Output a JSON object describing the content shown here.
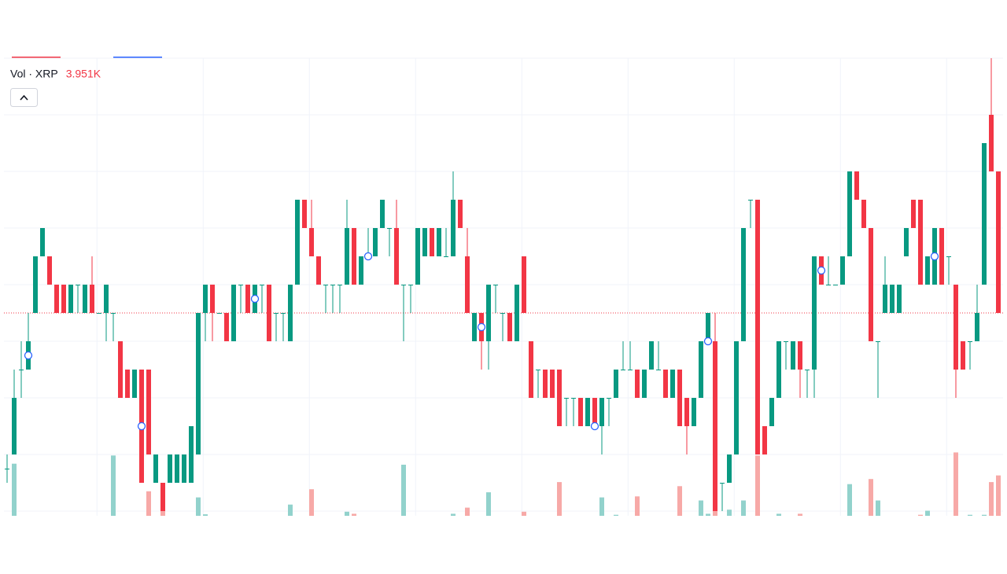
{
  "chart_data": {
    "type": "candlestick",
    "xlim": [
      -1,
      141
    ],
    "ylim": [
      0,
      16
    ],
    "yticks": [
      0,
      2,
      4,
      6,
      8,
      10,
      12,
      14,
      16
    ],
    "xticks": [
      12.7,
      27.7,
      42.7,
      57.7,
      72.7,
      87.7,
      102.7,
      117.7,
      132.7
    ],
    "grid": true,
    "up_color": "#089981",
    "down_color": "#f23645",
    "open": [
      1.5,
      2,
      5,
      5,
      7,
      9,
      9,
      8,
      8,
      7,
      8,
      7,
      8,
      7,
      7,
      7,
      6,
      5,
      4,
      5,
      5,
      1,
      1,
      1,
      1,
      1,
      1,
      2,
      7,
      8,
      7,
      7,
      6,
      8,
      8,
      7,
      8,
      8,
      7,
      7,
      6,
      8,
      11,
      10,
      9,
      8,
      8,
      8,
      8,
      10,
      8,
      9,
      9,
      10,
      10,
      10,
      8,
      8,
      8,
      9,
      10,
      9,
      9,
      9,
      11,
      9,
      6,
      7,
      6,
      8,
      7,
      7,
      6,
      9,
      6,
      5,
      5,
      5,
      5,
      4,
      4,
      4,
      3,
      4,
      3,
      4,
      4,
      5,
      5,
      5,
      4,
      5,
      5,
      5,
      4,
      5,
      4,
      3,
      4,
      6,
      6,
      1,
      1,
      2,
      6,
      11,
      11,
      3,
      3,
      4,
      6,
      5,
      6,
      5,
      5,
      9,
      8,
      8,
      8,
      9,
      12,
      11,
      10,
      6,
      7,
      7,
      7,
      9,
      11,
      11,
      8,
      8,
      10,
      9,
      8,
      6,
      6,
      6,
      8,
      14,
      12
    ],
    "high": [
      2,
      5,
      6,
      7,
      9,
      10,
      9,
      8,
      8,
      8,
      8,
      8,
      9,
      7,
      8,
      7,
      6,
      5,
      5,
      5,
      5,
      2,
      1,
      2,
      2,
      2,
      3,
      7,
      8,
      8,
      7,
      7,
      8,
      8,
      8,
      8,
      8,
      8,
      7,
      7,
      8,
      11,
      11,
      11,
      9,
      8,
      8,
      8,
      11,
      10,
      9,
      10,
      10,
      11,
      10,
      11,
      8,
      8,
      10,
      10,
      10,
      10,
      10,
      12,
      11,
      10,
      7,
      7,
      8,
      8,
      7,
      7,
      8,
      9,
      6,
      5,
      5,
      5,
      5,
      4,
      4,
      4,
      4,
      4,
      4,
      4,
      5,
      6,
      6,
      5,
      5,
      6,
      6,
      5,
      5,
      5,
      4,
      4,
      6,
      7,
      7,
      1,
      2,
      6,
      10,
      11,
      11,
      3,
      4,
      6,
      6,
      6,
      6,
      5,
      9,
      9,
      9,
      8,
      9,
      12,
      12,
      11,
      10,
      6,
      9,
      8,
      8,
      10,
      11,
      11,
      9,
      10,
      10,
      9,
      8,
      6,
      6,
      8,
      13,
      16,
      12
    ],
    "low": [
      1,
      2,
      4,
      5,
      7,
      9,
      8,
      7,
      7,
      7,
      7,
      7,
      7,
      7,
      6,
      6,
      4,
      4,
      4,
      1,
      2,
      1,
      0,
      1,
      1,
      1,
      1,
      2,
      6,
      6,
      7,
      6,
      6,
      7,
      7,
      7,
      7,
      6,
      6,
      6,
      6,
      8,
      10,
      9,
      8,
      7,
      7,
      7,
      8,
      8,
      8,
      9,
      9,
      10,
      9,
      8,
      6,
      7,
      8,
      9,
      9,
      9,
      9,
      9,
      10,
      7,
      6,
      5,
      5,
      7,
      6,
      6,
      6,
      7,
      4,
      4,
      4,
      4,
      3,
      3,
      3,
      3,
      3,
      3,
      2,
      3,
      4,
      5,
      5,
      4,
      4,
      5,
      5,
      4,
      4,
      3,
      2,
      3,
      4,
      6,
      0,
      0,
      1,
      2,
      6,
      10,
      2,
      2,
      3,
      4,
      5,
      5,
      4,
      4,
      4,
      8,
      8,
      8,
      8,
      9,
      11,
      10,
      6,
      4,
      7,
      7,
      7,
      9,
      10,
      8,
      8,
      8,
      8,
      8,
      4,
      5,
      5,
      6,
      8,
      12,
      7
    ],
    "close": [
      1.5,
      4,
      5,
      6,
      9,
      10,
      8,
      7,
      7,
      8,
      8,
      8,
      7,
      7,
      8,
      7,
      4,
      4,
      5,
      1,
      2,
      2,
      0,
      2,
      2,
      2,
      3,
      7,
      8,
      7,
      7,
      6,
      8,
      8,
      7,
      8,
      8,
      6,
      7,
      7,
      8,
      11,
      10,
      9,
      8,
      8,
      8,
      8,
      10,
      8,
      9,
      9,
      10,
      11,
      10,
      8,
      8,
      8,
      10,
      10,
      9,
      10,
      9,
      11,
      10,
      7,
      7,
      6,
      8,
      8,
      7,
      6,
      8,
      7,
      4,
      5,
      4,
      4,
      3,
      4,
      4,
      3,
      4,
      3,
      4,
      4,
      5,
      5,
      5,
      4,
      5,
      6,
      5,
      4,
      5,
      3,
      3,
      4,
      6,
      7,
      0,
      1,
      2,
      6,
      10,
      11,
      2,
      2,
      4,
      6,
      6,
      6,
      5,
      5,
      9,
      8,
      8,
      8,
      9,
      12,
      11,
      10,
      6,
      6,
      8,
      8,
      8,
      10,
      10,
      8,
      9,
      10,
      8,
      9,
      5,
      5,
      6,
      7,
      13,
      12,
      7
    ],
    "volume": {
      "name": "Vol · XRP",
      "vlim": [
        0,
        6
      ],
      "up_color": "#92d2cc",
      "down_color": "#f7a9a7",
      "values": [
        0,
        5.1,
        0,
        0,
        0,
        0,
        0,
        0,
        0,
        0,
        0,
        0,
        0,
        0,
        0,
        5.9,
        0,
        0,
        0,
        0,
        2.4,
        0,
        3.2,
        0,
        0,
        0,
        0,
        1.8,
        0.15,
        0,
        0,
        0,
        0,
        0,
        0,
        0,
        0,
        0,
        0,
        0,
        1.1,
        0,
        0,
        2.6,
        0,
        0,
        0,
        0,
        0.4,
        0.2,
        0,
        0,
        0,
        0,
        0,
        0,
        5.0,
        0,
        0,
        0,
        0,
        0,
        0,
        0.2,
        0,
        0.8,
        0,
        0,
        2.3,
        0,
        0,
        0,
        0,
        0.4,
        0,
        0,
        0,
        0,
        3.3,
        0,
        0,
        0,
        0,
        0,
        1.8,
        0,
        0.1,
        0,
        0,
        1.9,
        0,
        0,
        0,
        0,
        0,
        2.9,
        0,
        0,
        1.5,
        0.2,
        0.5,
        0,
        0.6,
        0,
        1.5,
        0,
        5.9,
        0,
        0,
        0.2,
        0,
        0,
        0.2,
        0,
        0,
        0,
        0,
        0,
        0,
        3.1,
        0,
        0,
        3.6,
        1.5,
        0,
        0,
        0,
        0,
        0,
        0.1,
        0.5,
        0,
        0,
        0,
        6.2,
        0,
        0.1,
        0,
        0.1,
        3.3,
        3.951
      ],
      "value_labels": [
        null,
        null,
        null,
        null,
        null,
        null,
        null,
        null,
        null,
        null,
        null,
        null,
        null,
        null,
        null,
        null,
        null,
        null,
        null,
        null,
        null,
        null,
        null,
        null,
        null,
        null,
        null,
        null,
        null,
        null,
        null,
        null,
        null,
        null,
        null,
        null,
        null,
        null,
        null,
        null,
        null,
        null,
        null,
        null,
        null,
        null,
        null,
        null,
        null,
        null,
        null,
        null,
        null,
        null,
        null,
        null,
        null,
        null,
        null,
        null,
        null,
        null,
        null,
        null,
        null,
        null,
        null,
        null,
        null,
        null,
        null,
        null,
        null,
        null,
        null,
        null,
        null,
        null,
        null,
        null,
        null,
        null,
        null,
        null,
        null,
        null,
        null,
        null,
        null,
        null,
        null,
        null,
        null,
        null,
        null,
        null,
        null,
        null,
        null,
        null,
        null,
        null,
        null,
        null,
        null,
        null,
        null,
        null,
        null,
        null,
        null,
        null,
        null,
        null,
        null,
        null,
        null,
        null,
        null,
        null,
        null,
        null,
        null,
        null,
        null,
        null,
        null,
        null,
        null,
        null,
        null,
        null,
        null,
        null,
        null,
        null,
        null,
        null,
        null,
        null,
        "3.951K"
      ]
    },
    "marker_color": "#2962ff",
    "markers": [
      {
        "index": 3,
        "value": 5.5
      },
      {
        "index": 19,
        "value": 3
      },
      {
        "index": 35,
        "value": 7.5
      },
      {
        "index": 51,
        "value": 9
      },
      {
        "index": 67,
        "value": 6.5
      },
      {
        "index": 83,
        "value": 3
      },
      {
        "index": 99,
        "value": 6
      },
      {
        "index": 115,
        "value": 8.5
      },
      {
        "index": 131,
        "value": 9
      }
    ]
  }
}
